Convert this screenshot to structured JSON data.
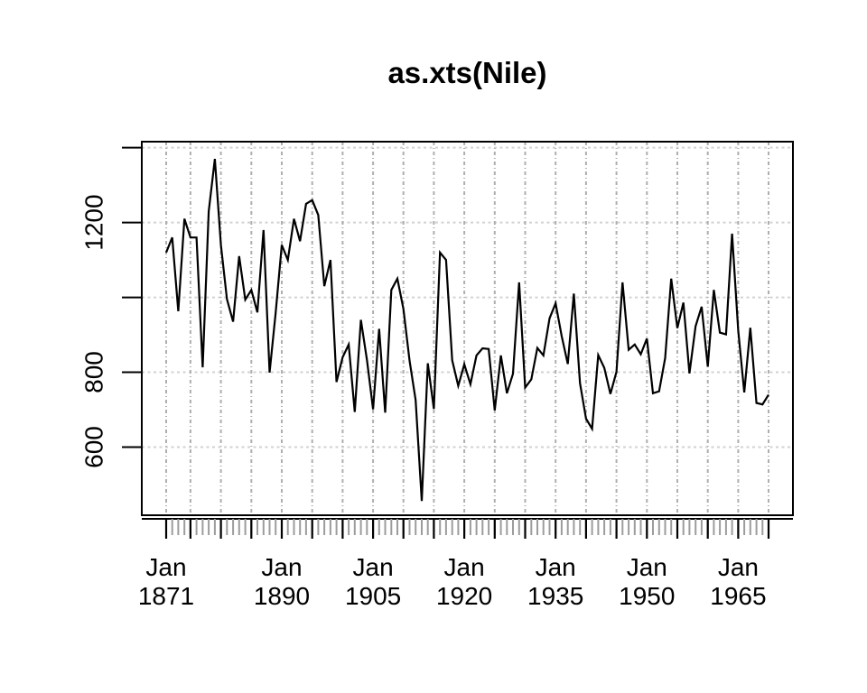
{
  "chart_data": {
    "type": "line",
    "title": "as.xts(Nile)",
    "xlabel": "",
    "ylabel": "",
    "grid": true,
    "legend_position": "none",
    "x_axis": {
      "label_month": "Jan",
      "label_years": [
        1871,
        1890,
        1905,
        1920,
        1935,
        1950,
        1965
      ],
      "major_tick_interval_years": 5,
      "minor_tick_interval_years": 1,
      "xlim_years": [
        1867,
        1974
      ]
    },
    "y_axis": {
      "ticks": [
        600,
        800,
        1000,
        1200,
        1400
      ],
      "labeled_ticks": [
        600,
        800,
        1200
      ],
      "ylim": [
        418,
        1416
      ]
    },
    "series": [
      {
        "name": "Nile",
        "start_year": 1871,
        "frequency": "annual",
        "values": [
          1120,
          1160,
          963,
          1210,
          1160,
          1160,
          813,
          1230,
          1370,
          1140,
          995,
          935,
          1110,
          994,
          1020,
          960,
          1180,
          799,
          958,
          1140,
          1100,
          1210,
          1150,
          1250,
          1260,
          1220,
          1030,
          1100,
          774,
          840,
          874,
          694,
          940,
          833,
          701,
          916,
          692,
          1020,
          1050,
          969,
          831,
          726,
          456,
          824,
          702,
          1120,
          1100,
          832,
          764,
          821,
          768,
          845,
          864,
          862,
          698,
          845,
          744,
          796,
          1040,
          759,
          781,
          865,
          845,
          944,
          984,
          897,
          822,
          1010,
          771,
          676,
          649,
          846,
          812,
          742,
          801,
          1040,
          860,
          874,
          848,
          890,
          744,
          749,
          838,
          1050,
          918,
          986,
          797,
          923,
          975,
          815,
          1020,
          906,
          901,
          1170,
          912,
          746,
          919,
          718,
          714,
          740
        ]
      }
    ]
  },
  "colors": {
    "series": "#000000",
    "axis": "#000000",
    "vertical_grid": "#aeaeae",
    "horizontal_grid": "#d2d2d2",
    "minor_tick": "#9c9c9c",
    "background": "#ffffff",
    "text": "#000000"
  }
}
